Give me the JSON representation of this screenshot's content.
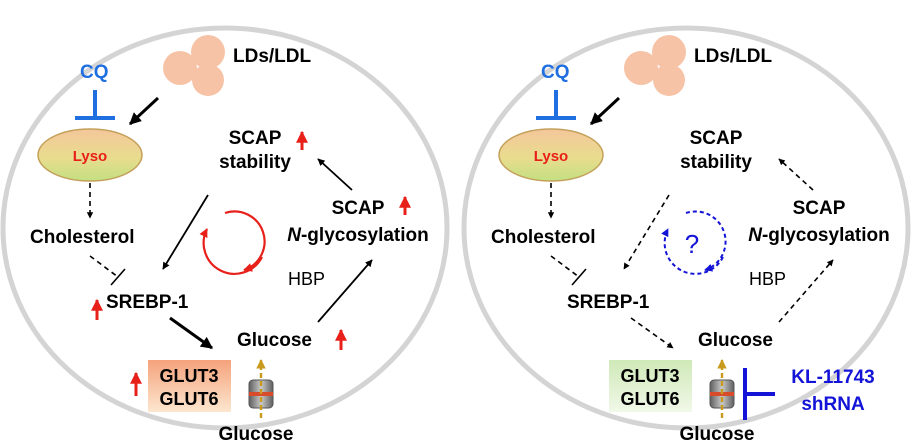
{
  "left": {
    "cq": "CQ",
    "lds": "LDs/LDL",
    "lyso": "Lyso",
    "scap_stability_1": "SCAP",
    "scap_stability_2": "stability",
    "scap_glyco_1": "SCAP",
    "scap_glyco_2_italic": "N",
    "scap_glyco_2_rest": "-glycosylation",
    "cholesterol": "Cholesterol",
    "srebp": "SREBP-1",
    "hbp": "HBP",
    "glucose_inner": "Glucose",
    "glut3": "GLUT3",
    "glut6": "GLUT6",
    "glucose_outer": "Glucose"
  },
  "right": {
    "cq": "CQ",
    "lds": "LDs/LDL",
    "lyso": "Lyso",
    "scap_stability_1": "SCAP",
    "scap_stability_2": "stability",
    "scap_glyco_1": "SCAP",
    "scap_glyco_2_italic": "N",
    "scap_glyco_2_rest": "-glycosylation",
    "cholesterol": "Cholesterol",
    "srebp": "SREBP-1",
    "hbp": "HBP",
    "glucose_inner": "Glucose",
    "question": "?",
    "glut3": "GLUT3",
    "glut6": "GLUT6",
    "glucose_outer": "Glucose",
    "inhibitor_1": "KL-11743",
    "inhibitor_2": "shRNA"
  },
  "colors": {
    "cell_outline": "#d4d4d4",
    "cq_blue": "#1f6fe0",
    "up_red": "#e8201a",
    "inhibitor_blue": "#1414d8",
    "lds_peach": "#f7c3a6"
  }
}
